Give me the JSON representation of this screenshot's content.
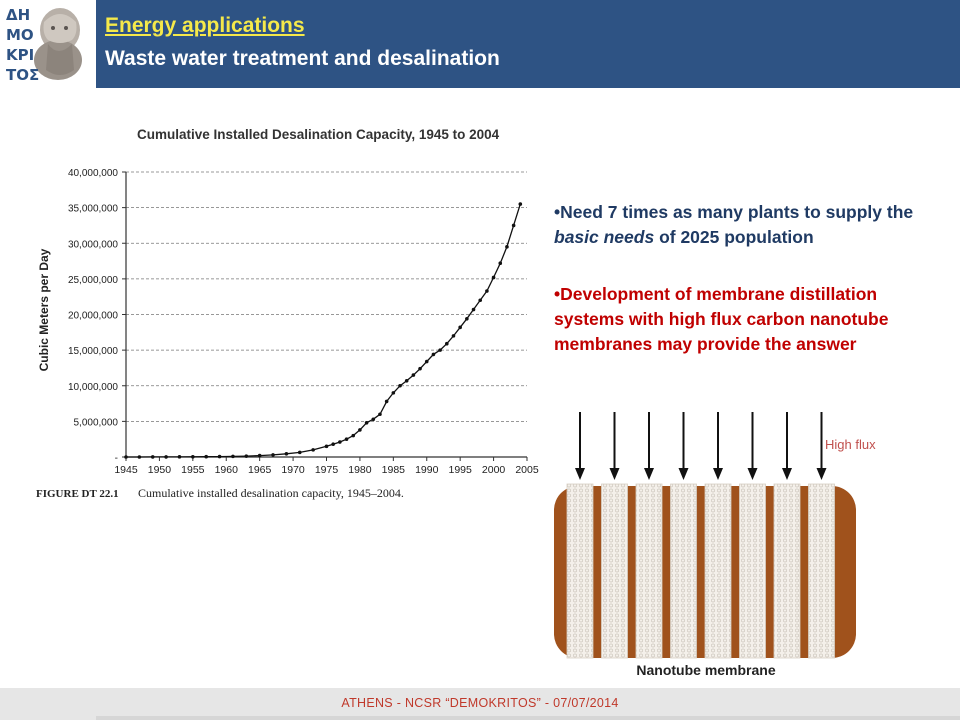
{
  "header": {
    "title": "Energy applications",
    "subtitle": "Waste water treatment and desalination",
    "logo_letters": "ΔΗΜΟΚΡΙΤΟΣ"
  },
  "bullets": {
    "b1_part1": "•Need 7 times as many plants to supply the ",
    "b1_emph": "basic needs",
    "b1_part2": " of 2025 population",
    "b2": "•Development of membrane distillation systems with high flux carbon nanotube membranes may provide the answer"
  },
  "chart_data": {
    "type": "line",
    "title": "Cumulative Installed Desalination Capacity, 1945 to 2004",
    "ylabel": "Cubic Meters per Day",
    "xlabel": "",
    "caption_label": "FIGURE DT 22.1",
    "caption_text": "Cumulative installed desalination capacity, 1945–2004.",
    "xlim": [
      1945,
      2005
    ],
    "ylim": [
      0,
      40000000
    ],
    "x_ticks": [
      "1945",
      "1950",
      "1955",
      "1960",
      "1965",
      "1970",
      "1975",
      "1980",
      "1985",
      "1990",
      "1995",
      "2000",
      "2005"
    ],
    "y_ticks": [
      "-",
      "5,000,000",
      "10,000,000",
      "15,000,000",
      "20,000,000",
      "25,000,000",
      "30,000,000",
      "35,000,000",
      "40,000,000"
    ],
    "grid": true,
    "series": [
      {
        "x": [
          1945,
          1947,
          1949,
          1951,
          1953,
          1955,
          1957,
          1959,
          1961,
          1963,
          1965,
          1967,
          1969,
          1971,
          1973,
          1975,
          1976,
          1977,
          1978,
          1979,
          1980,
          1981,
          1982,
          1983,
          1984,
          1985,
          1986,
          1987,
          1988,
          1989,
          1990,
          1991,
          1992,
          1993,
          1994,
          1995,
          1996,
          1997,
          1998,
          1999,
          2000,
          2001,
          2002,
          2003,
          2004
        ],
        "values": [
          0,
          0,
          10000,
          10000,
          20000,
          30000,
          40000,
          60000,
          80000,
          120000,
          200000,
          300000,
          450000,
          650000,
          1000000,
          1500000,
          1800000,
          2100000,
          2500000,
          3000000,
          3800000,
          4800000,
          5300000,
          6000000,
          7800000,
          9000000,
          10000000,
          10700000,
          11500000,
          12400000,
          13400000,
          14400000,
          15000000,
          15900000,
          17000000,
          18200000,
          19400000,
          20700000,
          22000000,
          23300000,
          25200000,
          27200000,
          29500000,
          32500000,
          35500000
        ]
      }
    ]
  },
  "diagram": {
    "flux_label": "High flux",
    "membrane_label": "Nanotube membrane",
    "tube_count": 8,
    "color_matrix": "#a0521c",
    "color_tube": "#f4f0ea"
  },
  "footer": {
    "text": "ATHENS - NCSR “DEMOKRITOS” - 07/07/2014"
  }
}
